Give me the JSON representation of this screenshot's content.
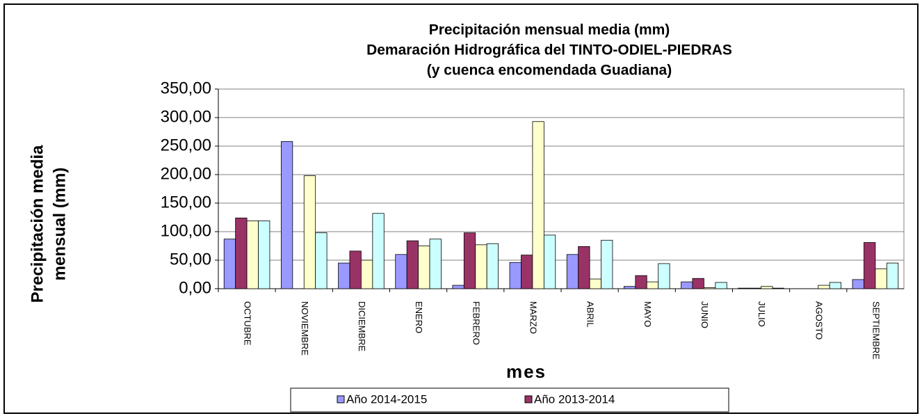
{
  "chart_data": {
    "type": "bar",
    "title": [
      "Precipitación mensual media (mm)",
      "Demaración Hidrográfica del TINTO-ODIEL-PIEDRAS",
      "(y cuenca encomendada Guadiana)"
    ],
    "y_label": [
      "Precipitación media",
      "mensual (mm)"
    ],
    "x_label": "mes",
    "categories": [
      "OCTUBRE",
      "NOVIEMBRE",
      "DICIEMBRE",
      "ENERO",
      "FEBRERO",
      "MARZO",
      "ABRIL",
      "MAYO",
      "JUNIO",
      "JULIO",
      "AGOSTO",
      "SEPTIEMBRE"
    ],
    "series": [
      {
        "name": "Año 2014-2015",
        "color": "#9999ff",
        "values": [
          87,
          258,
          45,
          60,
          6,
          46,
          60,
          4,
          12,
          1,
          0,
          16
        ]
      },
      {
        "name": "Año 2013-2014",
        "color": "#993366",
        "values": [
          124,
          0,
          66,
          84,
          98,
          59,
          74,
          23,
          18,
          1,
          0,
          81
        ]
      },
      {
        "color": "#ffffcc",
        "values": [
          119,
          198,
          50,
          75,
          77,
          293,
          17,
          12,
          2,
          4,
          6,
          35
        ]
      },
      {
        "color": "#ccffff",
        "values": [
          119,
          98,
          132,
          87,
          79,
          94,
          85,
          44,
          11,
          1,
          11,
          45
        ]
      }
    ],
    "ylim": [
      0,
      350
    ],
    "yticks": [
      {
        "value": 0,
        "label": "0,00"
      },
      {
        "value": 50,
        "label": "50,00"
      },
      {
        "value": 100,
        "label": "100,00"
      },
      {
        "value": 150,
        "label": "150,00"
      },
      {
        "value": 200,
        "label": "200,00"
      },
      {
        "value": 250,
        "label": "250,00"
      },
      {
        "value": 300,
        "label": "300,00"
      },
      {
        "value": 350,
        "label": "350,00"
      }
    ],
    "grid": true,
    "legend": "bottom"
  }
}
